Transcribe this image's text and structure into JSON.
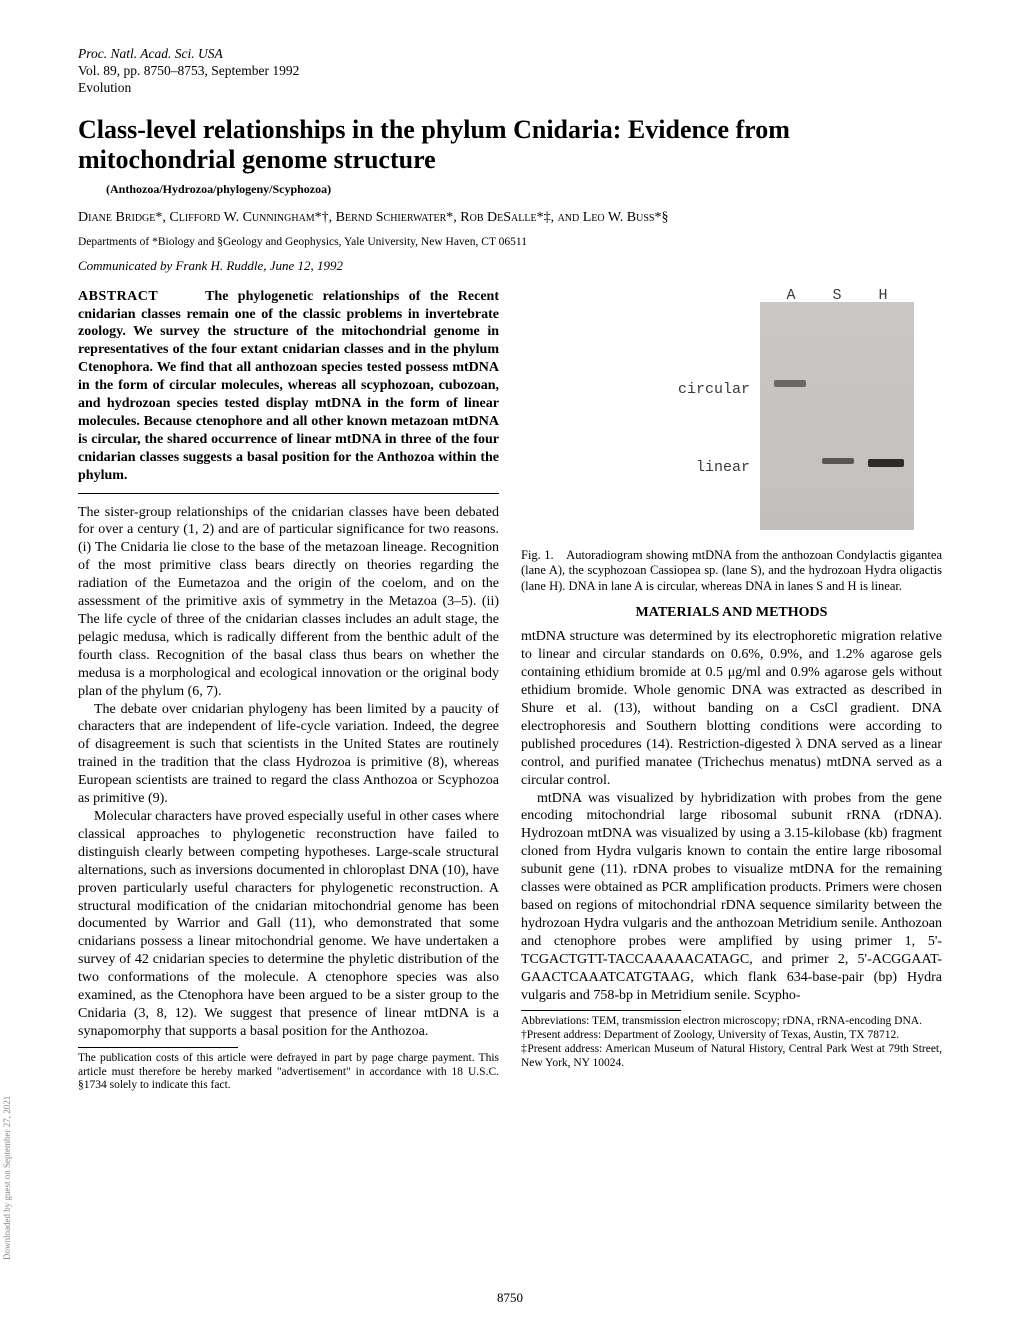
{
  "header": {
    "journal": "Proc. Natl. Acad. Sci. USA",
    "vol": "Vol. 89, pp. 8750–8753, September 1992",
    "section": "Evolution"
  },
  "title": "Class-level relationships in the phylum Cnidaria: Evidence from mitochondrial genome structure",
  "keywords": "(Anthozoa/Hydrozoa/phylogeny/Scyphozoa)",
  "authors": "Diane Bridge*, Clifford W. Cunningham*†, Bernd Schierwater*, Rob DeSalle*‡, and Leo W. Buss*§",
  "affiliations": "Departments of *Biology and §Geology and Geophysics, Yale University, New Haven, CT 06511",
  "communicated": "Communicated by Frank H. Ruddle, June 12, 1992",
  "abstract": {
    "label": "ABSTRACT",
    "text": "The phylogenetic relationships of the Recent cnidarian classes remain one of the classic problems in invertebrate zoology. We survey the structure of the mitochondrial genome in representatives of the four extant cnidarian classes and in the phylum Ctenophora. We find that all anthozoan species tested possess mtDNA in the form of circular molecules, whereas all scyphozoan, cubozoan, and hydrozoan species tested display mtDNA in the form of linear molecules. Because ctenophore and all other known metazoan mtDNA is circular, the shared occurrence of linear mtDNA in three of the four cnidarian classes suggests a basal position for the Anthozoa within the phylum."
  },
  "intro": [
    "The sister-group relationships of the cnidarian classes have been debated for over a century (1, 2) and are of particular significance for two reasons. (i) The Cnidaria lie close to the base of the metazoan lineage. Recognition of the most primitive class bears directly on theories regarding the radiation of the Eumetazoa and the origin of the coelom, and on the assessment of the primitive axis of symmetry in the Metazoa (3–5). (ii) The life cycle of three of the cnidarian classes includes an adult stage, the pelagic medusa, which is radically different from the benthic adult of the fourth class. Recognition of the basal class thus bears on whether the medusa is a morphological and ecological innovation or the original body plan of the phylum (6, 7).",
    "The debate over cnidarian phylogeny has been limited by a paucity of characters that are independent of life-cycle variation. Indeed, the degree of disagreement is such that scientists in the United States are routinely trained in the tradition that the class Hydrozoa is primitive (8), whereas European scientists are trained to regard the class Anthozoa or Scyphozoa as primitive (9).",
    "Molecular characters have proved especially useful in other cases where classical approaches to phylogenetic reconstruction have failed to distinguish clearly between competing hypotheses. Large-scale structural alternations, such as inversions documented in chloroplast DNA (10), have proven particularly useful characters for phylogenetic reconstruction. A structural modification of the cnidarian mitochondrial genome has been documented by Warrior and Gall (11), who demonstrated that some cnidarians possess a linear mitochondrial genome. We have undertaken a survey of 42 cnidarian species to determine the phyletic distribution of the two conformations of the molecule. A ctenophore species was also examined, as the Ctenophora have been argued to be a sister group to the Cnidaria (3, 8, 12). We suggest that presence of linear mtDNA is a synapomorphy that supports a basal position for the Anthozoa."
  ],
  "pubcost": "The publication costs of this article were defrayed in part by page charge payment. This article must therefore be hereby marked \"advertisement\" in accordance with 18 U.S.C. §1734 solely to indicate this fact.",
  "figure": {
    "lanes": [
      "A",
      "S",
      "H"
    ],
    "row1": "circular",
    "row2": "linear",
    "caption": "Fig. 1. Autoradiogram showing mtDNA from the anthozoan Condylactis gigantea (lane A), the scyphozoan Cassiopea sp. (lane S), and the hydrozoan Hydra oligactis (lane H). DNA in lane A is circular, whereas DNA in lanes S and H is linear."
  },
  "methods": {
    "heading": "MATERIALS AND METHODS",
    "paras": [
      "mtDNA structure was determined by its electrophoretic migration relative to linear and circular standards on 0.6%, 0.9%, and 1.2% agarose gels containing ethidium bromide at 0.5 μg/ml and 0.9% agarose gels without ethidium bromide. Whole genomic DNA was extracted as described in Shure et al. (13), without banding on a CsCl gradient. DNA electrophoresis and Southern blotting conditions were according to published procedures (14). Restriction-digested λ DNA served as a linear control, and purified manatee (Trichechus menatus) mtDNA served as a circular control.",
      "mtDNA was visualized by hybridization with probes from the gene encoding mitochondrial large ribosomal subunit rRNA (rDNA). Hydrozoan mtDNA was visualized by using a 3.15-kilobase (kb) fragment cloned from Hydra vulgaris known to contain the entire large ribosomal subunit gene (11). rDNA probes to visualize mtDNA for the remaining classes were obtained as PCR amplification products. Primers were chosen based on regions of mitochondrial rDNA sequence similarity between the hydrozoan Hydra vulgaris and the anthozoan Metridium senile. Anthozoan and ctenophore probes were amplified by using primer 1, 5'-TCGACTGTT-TACCAAAAACATAGC, and primer 2, 5'-ACGGAAT-GAACTCAAATCATGTAAG, which flank 634-base-pair (bp) Hydra vulgaris and 758-bp in Metridium senile. Scypho-"
    ]
  },
  "abbrev": "Abbreviations: TEM, transmission electron microscopy; rDNA, rRNA-encoding DNA.",
  "addr1": "†Present address: Department of Zoology, University of Texas, Austin, TX 78712.",
  "addr2": "‡Present address: American Museum of Natural History, Central Park West at 79th Street, New York, NY 10024.",
  "pagenum": "8750",
  "sidetext": "Downloaded by guest on September 27, 2021"
}
